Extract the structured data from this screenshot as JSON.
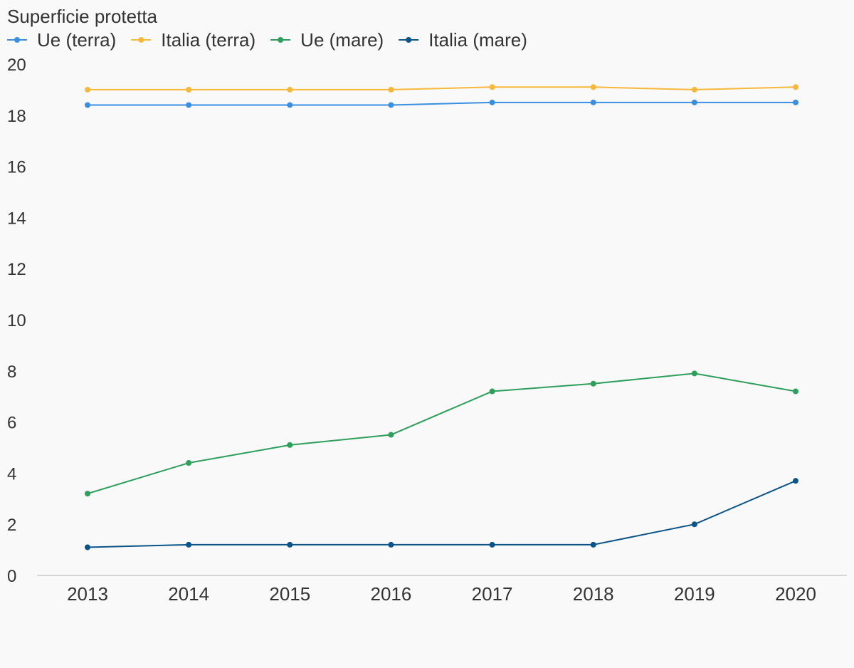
{
  "chart_data": {
    "type": "line",
    "title": "Superficie protetta",
    "xlabel": "",
    "ylabel": "",
    "x": [
      "2013",
      "2014",
      "2015",
      "2016",
      "2017",
      "2018",
      "2019",
      "2020"
    ],
    "ylim": [
      0,
      20
    ],
    "yticks": [
      0,
      2,
      4,
      6,
      8,
      10,
      12,
      14,
      16,
      18,
      20
    ],
    "grid": false,
    "legend_position": "top-left",
    "series": [
      {
        "name": "Ue (terra)",
        "color": "#3b8fe0",
        "values": [
          18.4,
          18.4,
          18.4,
          18.4,
          18.5,
          18.5,
          18.5,
          18.5
        ]
      },
      {
        "name": "Italia (terra)",
        "color": "#f7b83b",
        "values": [
          19.0,
          19.0,
          19.0,
          19.0,
          19.1,
          19.1,
          19.0,
          19.1
        ]
      },
      {
        "name": "Ue (mare)",
        "color": "#2e9e5b",
        "values": [
          3.2,
          4.4,
          5.1,
          5.5,
          7.2,
          7.5,
          7.9,
          7.2
        ]
      },
      {
        "name": "Italia (mare)",
        "color": "#0b5487",
        "values": [
          1.1,
          1.2,
          1.2,
          1.2,
          1.2,
          1.2,
          2.0,
          3.7
        ]
      }
    ]
  }
}
